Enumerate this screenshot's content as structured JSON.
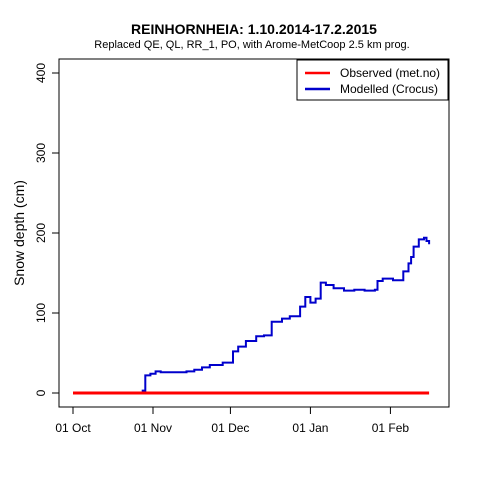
{
  "chart_data": {
    "type": "line",
    "title": "REINHORNHEIA: 1.10.2014-17.2.2015",
    "subtitle": "Replaced QE, QL, RR_1, PO,  with Arome-MetCoop 2.5 km prog.",
    "xlabel": "",
    "ylabel": "Snow depth (cm)",
    "x_range": [
      "2014-10-01",
      "2015-02-17"
    ],
    "x_tick_labels": [
      "01 Oct",
      "01 Nov",
      "01 Dec",
      "01 Jan",
      "01 Feb"
    ],
    "x_tick_dates": [
      "2014-10-01",
      "2014-11-01",
      "2014-12-01",
      "2015-01-01",
      "2015-02-01"
    ],
    "ylim": [
      0,
      400
    ],
    "y_ticks": [
      0,
      100,
      200,
      300,
      400
    ],
    "grid": false,
    "legend_position": "top-right",
    "colors": {
      "observed": "#ff0000",
      "modelled": "#0000cc",
      "axis": "#000000"
    },
    "series": [
      {
        "name": "Observed (met.no)",
        "color": "#ff0000",
        "dates": [
          "2014-10-01",
          "2014-10-28",
          "2015-02-16"
        ],
        "values": [
          0,
          0,
          0
        ]
      },
      {
        "name": "Modelled (Crocus)",
        "color": "#0000cc",
        "dates": [
          "2014-10-01",
          "2014-10-28",
          "2014-10-29",
          "2014-10-31",
          "2014-11-02",
          "2014-11-04",
          "2014-11-09",
          "2014-11-14",
          "2014-11-17",
          "2014-11-20",
          "2014-11-23",
          "2014-11-28",
          "2014-12-02",
          "2014-12-04",
          "2014-12-07",
          "2014-12-11",
          "2014-12-14",
          "2014-12-17",
          "2014-12-21",
          "2014-12-24",
          "2014-12-28",
          "2014-12-30",
          "2015-01-01",
          "2015-01-03",
          "2015-01-05",
          "2015-01-07",
          "2015-01-10",
          "2015-01-14",
          "2015-01-18",
          "2015-01-22",
          "2015-01-26",
          "2015-01-27",
          "2015-01-29",
          "2015-02-02",
          "2015-02-04",
          "2015-02-06",
          "2015-02-08",
          "2015-02-09",
          "2015-02-10",
          "2015-02-12",
          "2015-02-14",
          "2015-02-15",
          "2015-02-16"
        ],
        "values": [
          0,
          3,
          22,
          24,
          27,
          26,
          26,
          27,
          29,
          32,
          35,
          38,
          52,
          58,
          65,
          71,
          72,
          89,
          93,
          96,
          108,
          120,
          113,
          118,
          138,
          135,
          131,
          128,
          129,
          128,
          129,
          140,
          143,
          141,
          141,
          152,
          162,
          170,
          183,
          192,
          194,
          190,
          186
        ]
      }
    ]
  }
}
